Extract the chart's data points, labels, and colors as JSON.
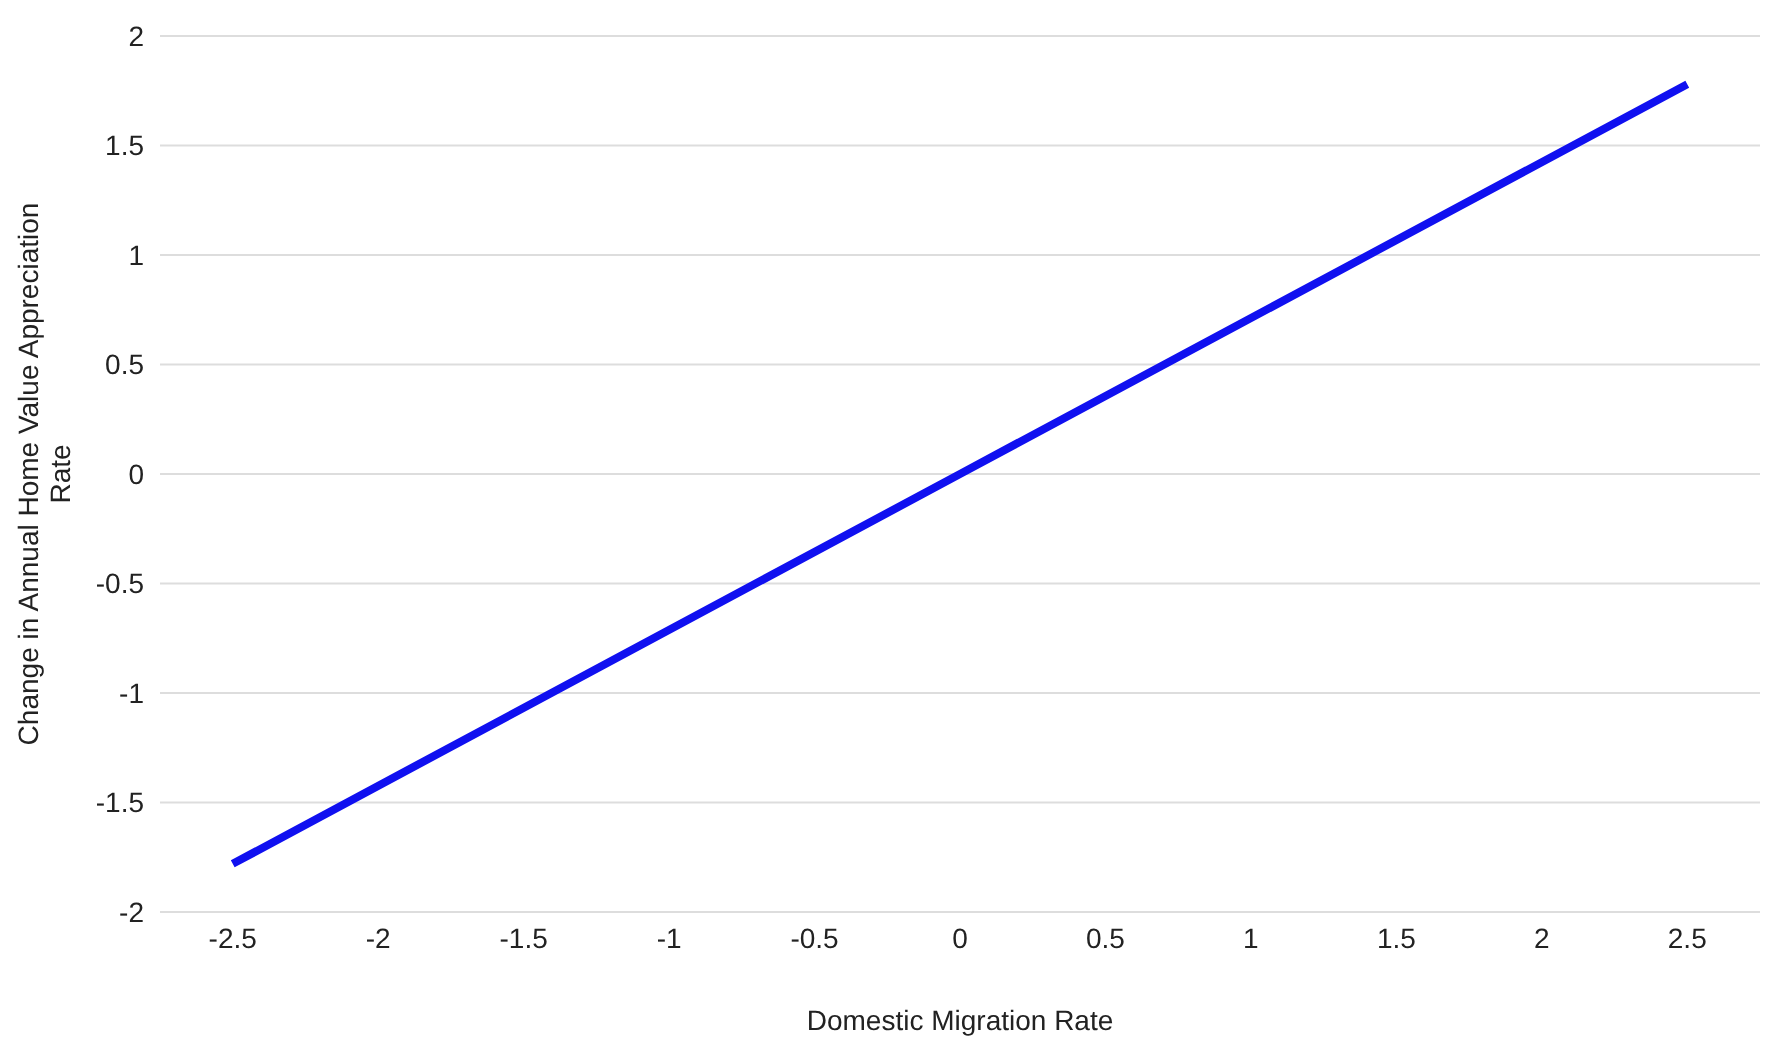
{
  "chart_data": {
    "type": "line",
    "xlabel": "Domestic Migration Rate",
    "ylabel": "Change in Annual Home Value Appreciation Rate",
    "x": [
      -2.5,
      0,
      2.5
    ],
    "series": [
      {
        "color": "#1010f0",
        "values": [
          -1.78,
          0,
          1.78
        ]
      }
    ],
    "xlim": [
      -2.75,
      2.75
    ],
    "xticks": [
      -2.5,
      -2,
      -1.5,
      -1,
      -0.5,
      0,
      0.5,
      1,
      1.5,
      2,
      2.5
    ],
    "ylim": [
      -2,
      2
    ],
    "yticks": [
      -2,
      -1.5,
      -1,
      -0.5,
      0,
      0.5,
      1,
      1.5,
      2
    ],
    "grid": "y",
    "legend": false,
    "marker": "none",
    "line_style": "solid"
  }
}
